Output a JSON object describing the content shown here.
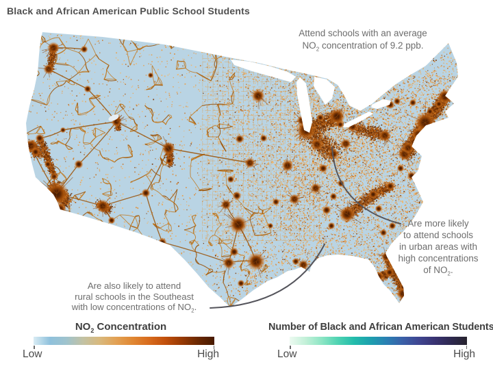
{
  "title": "Black and African American Public School Students",
  "annotations": {
    "average": {
      "line1": "Attend schools with an average",
      "line2_pre": "NO",
      "line2_sub": "2",
      "line2_post": " concentration of 9.2 ppb."
    },
    "urban": {
      "line1": "Are more likely",
      "line2": "to attend schools",
      "line3": "in urban areas with",
      "line4": "high concentrations",
      "line5_pre": "of NO",
      "line5_sub": "2",
      "line5_post": "."
    },
    "rural": {
      "line1": "Are also likely to attend",
      "line2": "rural schools in the Southeast",
      "line3_pre": "with low concentrations of NO",
      "line3_sub": "2",
      "line3_post": "."
    }
  },
  "legend_no2": {
    "title_pre": "NO",
    "title_sub": "2",
    "title_post": " Concentration",
    "low": "Low",
    "high": "High",
    "gradient": [
      "#d9ecf4",
      "#8fc1dc",
      "#9fc3cd",
      "#c2c2a4",
      "#d8b97e",
      "#e2a255",
      "#e08834",
      "#d86c1e",
      "#c2500c",
      "#983a04",
      "#6b2802",
      "#471a00"
    ]
  },
  "legend_students": {
    "title": "Number of Black and African American Students",
    "low": "Low",
    "high": "High",
    "gradient": [
      "#edfaf1",
      "#c2f0d8",
      "#8ce5c4",
      "#4fd3b2",
      "#23bcab",
      "#1da0ae",
      "#2a80b3",
      "#3a60a8",
      "#3f4691",
      "#393372",
      "#2e2950",
      "#27242e"
    ]
  },
  "map": {
    "base_color": "#b9d4e4",
    "water_color": "#ffffff",
    "road_color": "#c0700f",
    "road_dark": "#9a5208",
    "grid_color": "#dd9a45",
    "city_core": "#3f1a02",
    "city_mid": "#9c4a07",
    "leader_color": "#55555c",
    "stipple_palette": [
      "#f0b56a",
      "#e8a252",
      "#dd8c38",
      "#c96f1c",
      "#a85410",
      "#7e3a08"
    ]
  }
}
